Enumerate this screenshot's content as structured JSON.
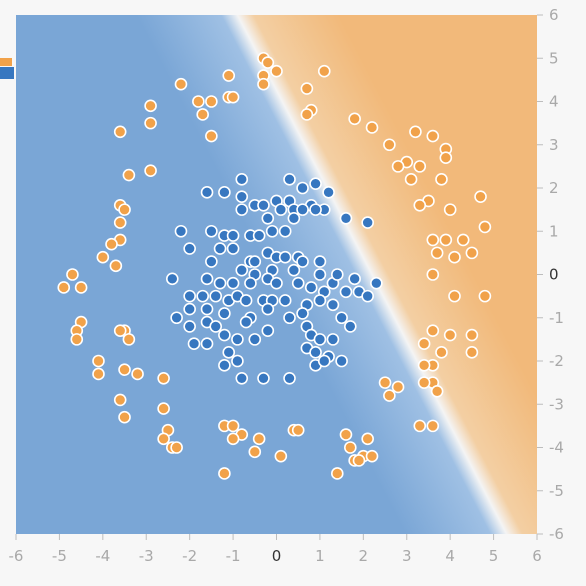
{
  "chart_data": {
    "type": "scatter",
    "title": "",
    "xlabel": "",
    "ylabel": "",
    "xlim": [
      -6,
      6
    ],
    "ylim": [
      -6,
      6
    ],
    "x_ticks": [
      "-6",
      "-5",
      "-4",
      "-3",
      "-2",
      "-1",
      "0",
      "1",
      "2",
      "3",
      "4",
      "5",
      "6"
    ],
    "y_ticks": [
      "6",
      "5",
      "4",
      "3",
      "2",
      "1",
      "0",
      "-1",
      "-2",
      "-3",
      "-4",
      "-5",
      "-6"
    ],
    "grid": false,
    "legend": "none",
    "background_regions": {
      "positive_color": "#f2b97a",
      "negative_color": "#7aa6d6",
      "boundary": "diagonal line from about (-0.9, 6) to (5.3, -6)"
    },
    "colors": {
      "orange": "#f1a24a",
      "blue": "#3777c0",
      "point_outline": "#ffffff",
      "tick_text": "#a9a9a9",
      "zero_tick_text": "#333333"
    },
    "series": [
      {
        "color": "#f1a24a",
        "points": [
          [
            -0.3,
            5.0
          ],
          [
            -0.2,
            4.9
          ],
          [
            0.0,
            4.7
          ],
          [
            -0.3,
            4.6
          ],
          [
            -0.3,
            4.4
          ],
          [
            -1.1,
            4.6
          ],
          [
            -2.2,
            4.4
          ],
          [
            -1.8,
            4.0
          ],
          [
            -1.5,
            4.0
          ],
          [
            -1.1,
            4.1
          ],
          [
            -1.0,
            4.1
          ],
          [
            -1.7,
            3.7
          ],
          [
            -2.9,
            3.9
          ],
          [
            -2.9,
            3.5
          ],
          [
            -1.5,
            3.2
          ],
          [
            -3.6,
            3.3
          ],
          [
            -3.4,
            2.3
          ],
          [
            -2.9,
            2.4
          ],
          [
            0.7,
            4.3
          ],
          [
            1.1,
            4.7
          ],
          [
            0.8,
            3.8
          ],
          [
            0.7,
            3.7
          ],
          [
            1.8,
            3.6
          ],
          [
            2.2,
            3.4
          ],
          [
            2.6,
            3.0
          ],
          [
            3.2,
            3.3
          ],
          [
            3.6,
            3.2
          ],
          [
            3.9,
            2.9
          ],
          [
            3.9,
            2.7
          ],
          [
            3.0,
            2.6
          ],
          [
            3.3,
            2.5
          ],
          [
            2.8,
            2.5
          ],
          [
            3.1,
            2.2
          ],
          [
            3.8,
            2.2
          ],
          [
            3.5,
            1.7
          ],
          [
            3.3,
            1.6
          ],
          [
            4.0,
            1.5
          ],
          [
            4.7,
            1.8
          ],
          [
            4.8,
            1.1
          ],
          [
            4.3,
            0.8
          ],
          [
            4.5,
            0.5
          ],
          [
            3.9,
            0.8
          ],
          [
            3.6,
            0.8
          ],
          [
            3.7,
            0.5
          ],
          [
            4.1,
            0.4
          ],
          [
            3.6,
            0.0
          ],
          [
            4.1,
            -0.5
          ],
          [
            4.8,
            -0.5
          ],
          [
            3.6,
            -1.3
          ],
          [
            4.0,
            -1.4
          ],
          [
            4.5,
            -1.4
          ],
          [
            3.4,
            -1.6
          ],
          [
            4.5,
            -1.8
          ],
          [
            3.8,
            -1.8
          ],
          [
            3.6,
            -2.1
          ],
          [
            3.4,
            -2.1
          ],
          [
            3.6,
            -2.5
          ],
          [
            3.4,
            -2.5
          ],
          [
            2.8,
            -2.6
          ],
          [
            3.7,
            -2.7
          ],
          [
            2.6,
            -2.8
          ],
          [
            3.3,
            -3.5
          ],
          [
            3.6,
            -3.5
          ],
          [
            1.6,
            -3.7
          ],
          [
            2.1,
            -3.8
          ],
          [
            1.7,
            -4.0
          ],
          [
            2.0,
            -4.2
          ],
          [
            1.8,
            -4.3
          ],
          [
            1.9,
            -4.3
          ],
          [
            2.2,
            -4.2
          ],
          [
            1.4,
            -4.6
          ],
          [
            -3.6,
            1.6
          ],
          [
            -3.5,
            1.5
          ],
          [
            -3.6,
            1.2
          ],
          [
            -3.6,
            0.8
          ],
          [
            -3.8,
            0.7
          ],
          [
            -4.0,
            0.4
          ],
          [
            -3.7,
            0.2
          ],
          [
            -4.7,
            0.0
          ],
          [
            -4.9,
            -0.3
          ],
          [
            -4.5,
            -0.3
          ],
          [
            -4.5,
            -1.1
          ],
          [
            -4.6,
            -1.3
          ],
          [
            -4.6,
            -1.5
          ],
          [
            -3.5,
            -1.3
          ],
          [
            -3.6,
            -1.3
          ],
          [
            -3.4,
            -1.5
          ],
          [
            -4.1,
            -2.0
          ],
          [
            -4.1,
            -2.3
          ],
          [
            -3.5,
            -2.2
          ],
          [
            -3.2,
            -2.3
          ],
          [
            -2.6,
            -2.4
          ],
          [
            -3.6,
            -2.9
          ],
          [
            -3.5,
            -3.3
          ],
          [
            -2.6,
            -3.1
          ],
          [
            -2.5,
            -3.6
          ],
          [
            -2.6,
            -3.8
          ],
          [
            -2.4,
            -4.0
          ],
          [
            -2.3,
            -4.0
          ],
          [
            -1.2,
            -3.5
          ],
          [
            -1.0,
            -3.5
          ],
          [
            -0.8,
            -3.7
          ],
          [
            -1.0,
            -3.8
          ],
          [
            -0.4,
            -3.8
          ],
          [
            -0.5,
            -4.1
          ],
          [
            0.1,
            -4.2
          ],
          [
            0.4,
            -3.6
          ],
          [
            0.5,
            -3.6
          ],
          [
            -1.2,
            -4.6
          ],
          [
            2.5,
            -2.5
          ]
        ]
      },
      {
        "color": "#3777c0",
        "points": [
          [
            -0.8,
            2.2
          ],
          [
            0.3,
            2.2
          ],
          [
            0.6,
            2.0
          ],
          [
            0.9,
            2.1
          ],
          [
            1.2,
            1.9
          ],
          [
            -1.6,
            1.9
          ],
          [
            -1.2,
            1.9
          ],
          [
            -0.8,
            1.8
          ],
          [
            0.0,
            1.7
          ],
          [
            0.3,
            1.7
          ],
          [
            0.8,
            1.6
          ],
          [
            1.1,
            1.5
          ],
          [
            -0.5,
            1.6
          ],
          [
            -0.3,
            1.6
          ],
          [
            0.1,
            1.5
          ],
          [
            0.4,
            1.5
          ],
          [
            0.6,
            1.5
          ],
          [
            0.9,
            1.5
          ],
          [
            -0.8,
            1.5
          ],
          [
            -0.2,
            1.3
          ],
          [
            0.4,
            1.3
          ],
          [
            1.6,
            1.3
          ],
          [
            2.1,
            1.2
          ],
          [
            -2.2,
            1.0
          ],
          [
            -1.5,
            1.0
          ],
          [
            -1.2,
            0.9
          ],
          [
            -1.0,
            0.9
          ],
          [
            -0.6,
            0.9
          ],
          [
            -0.4,
            0.9
          ],
          [
            -0.1,
            1.0
          ],
          [
            0.2,
            1.0
          ],
          [
            -2.0,
            0.6
          ],
          [
            -1.3,
            0.6
          ],
          [
            -1.0,
            0.6
          ],
          [
            -0.2,
            0.5
          ],
          [
            0.0,
            0.4
          ],
          [
            0.2,
            0.4
          ],
          [
            0.5,
            0.4
          ],
          [
            0.6,
            0.3
          ],
          [
            1.0,
            0.3
          ],
          [
            -0.6,
            0.3
          ],
          [
            -1.5,
            0.3
          ],
          [
            -0.8,
            0.1
          ],
          [
            -0.5,
            0.0
          ],
          [
            -0.1,
            0.1
          ],
          [
            0.4,
            0.1
          ],
          [
            1.0,
            0.0
          ],
          [
            1.3,
            -0.2
          ],
          [
            1.8,
            -0.1
          ],
          [
            2.3,
            -0.2
          ],
          [
            -2.4,
            -0.1
          ],
          [
            -1.6,
            -0.1
          ],
          [
            -1.3,
            -0.2
          ],
          [
            -1.0,
            -0.2
          ],
          [
            -0.6,
            -0.2
          ],
          [
            -0.2,
            -0.1
          ],
          [
            0.0,
            -0.2
          ],
          [
            0.5,
            -0.2
          ],
          [
            0.8,
            -0.3
          ],
          [
            1.1,
            -0.4
          ],
          [
            1.6,
            -0.4
          ],
          [
            1.9,
            -0.4
          ],
          [
            2.1,
            -0.5
          ],
          [
            -2.0,
            -0.5
          ],
          [
            -1.7,
            -0.5
          ],
          [
            -1.4,
            -0.5
          ],
          [
            -1.1,
            -0.6
          ],
          [
            -0.9,
            -0.5
          ],
          [
            -0.7,
            -0.6
          ],
          [
            -0.3,
            -0.6
          ],
          [
            -0.1,
            -0.6
          ],
          [
            0.2,
            -0.6
          ],
          [
            0.7,
            -0.7
          ],
          [
            1.0,
            -0.6
          ],
          [
            1.3,
            -0.7
          ],
          [
            -2.0,
            -0.8
          ],
          [
            -1.6,
            -0.8
          ],
          [
            -1.2,
            -0.9
          ],
          [
            -0.6,
            -1.0
          ],
          [
            -0.2,
            -0.8
          ],
          [
            0.3,
            -1.0
          ],
          [
            0.6,
            -0.9
          ],
          [
            -2.3,
            -1.0
          ],
          [
            -1.6,
            -1.1
          ],
          [
            -2.0,
            -1.2
          ],
          [
            -1.4,
            -1.2
          ],
          [
            -0.7,
            -1.1
          ],
          [
            -0.2,
            -1.3
          ],
          [
            0.7,
            -1.2
          ],
          [
            1.7,
            -1.2
          ],
          [
            -1.2,
            -1.4
          ],
          [
            -0.9,
            -1.5
          ],
          [
            0.8,
            -1.4
          ],
          [
            1.0,
            -1.5
          ],
          [
            1.3,
            -1.5
          ],
          [
            -1.9,
            -1.6
          ],
          [
            -1.6,
            -1.6
          ],
          [
            -1.1,
            -1.8
          ],
          [
            -0.9,
            -2.0
          ],
          [
            0.7,
            -1.7
          ],
          [
            0.9,
            -1.8
          ],
          [
            1.2,
            -1.9
          ],
          [
            1.5,
            -2.0
          ],
          [
            -1.2,
            -2.1
          ],
          [
            0.9,
            -2.1
          ],
          [
            1.1,
            -2.0
          ],
          [
            -0.8,
            -2.4
          ],
          [
            -0.3,
            -2.4
          ],
          [
            0.3,
            -2.4
          ],
          [
            1.4,
            0.0
          ],
          [
            -0.5,
            0.3
          ],
          [
            1.5,
            -1.0
          ],
          [
            -0.5,
            -1.5
          ]
        ]
      }
    ]
  }
}
